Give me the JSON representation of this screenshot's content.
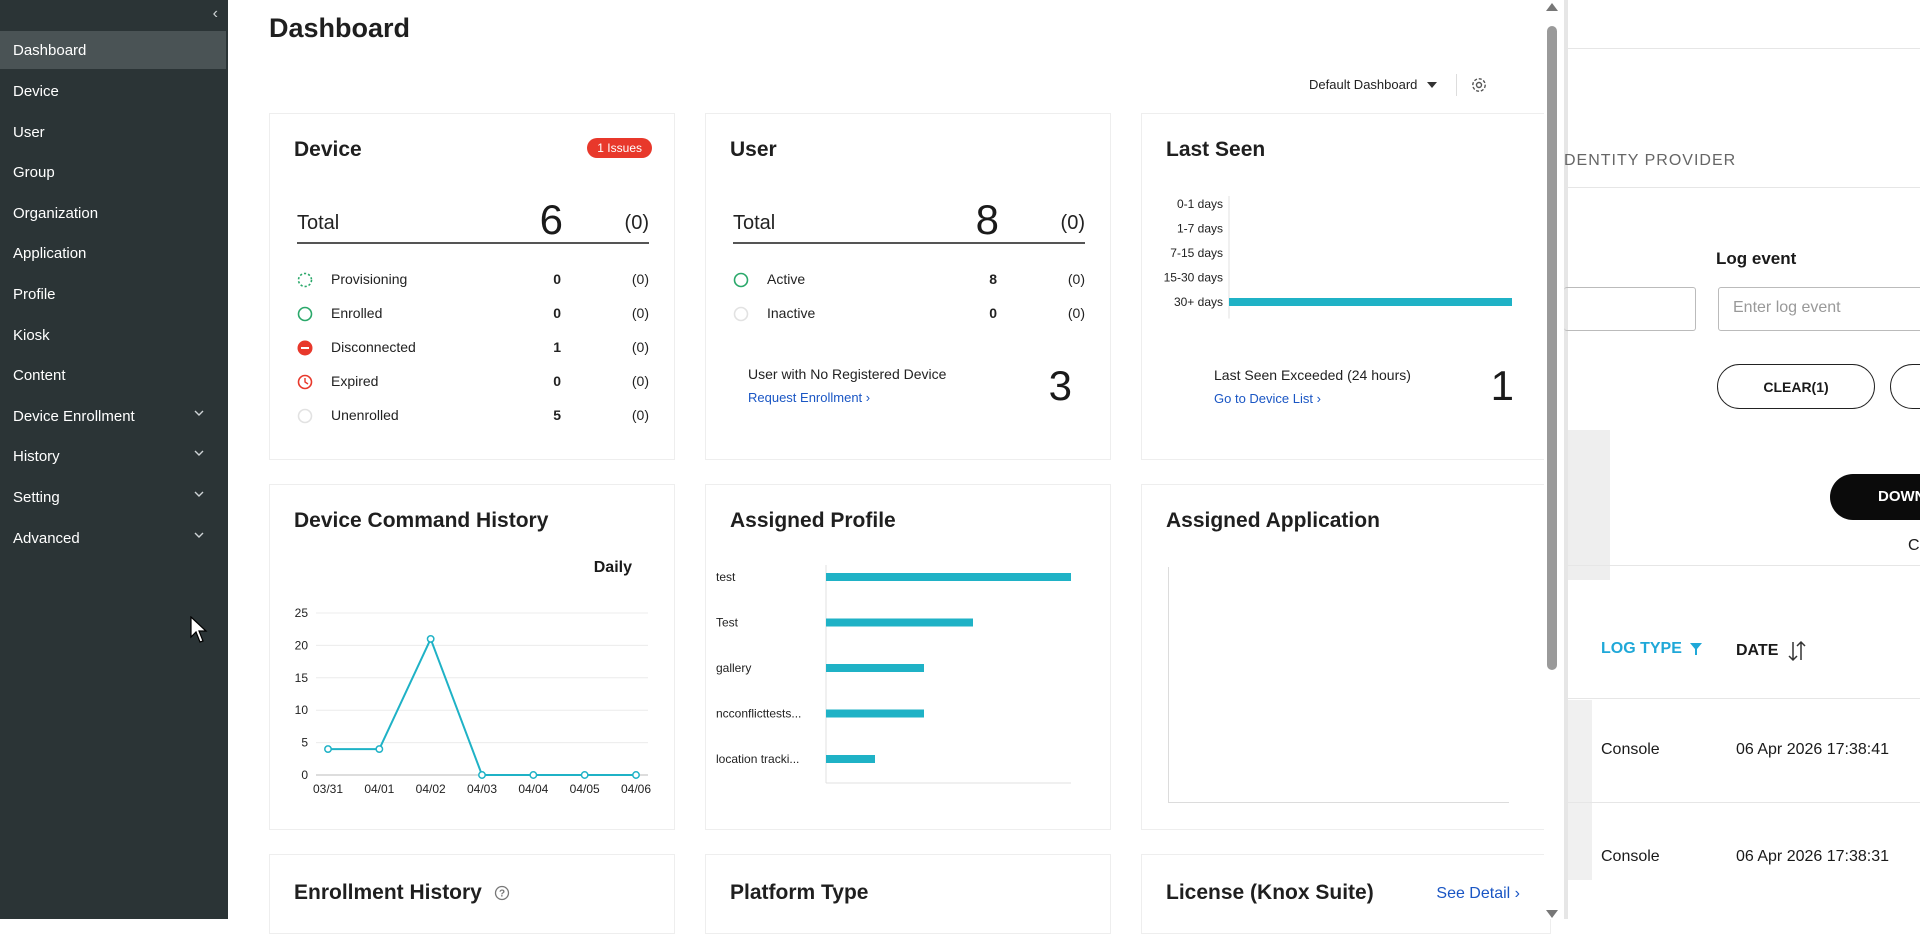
{
  "sidebar": {
    "items": [
      {
        "label": "Dashboard",
        "active": true
      },
      {
        "label": "Device"
      },
      {
        "label": "User"
      },
      {
        "label": "Group"
      },
      {
        "label": "Organization"
      },
      {
        "label": "Application"
      },
      {
        "label": "Profile"
      },
      {
        "label": "Kiosk"
      },
      {
        "label": "Content"
      },
      {
        "label": "Device Enrollment",
        "expandable": true
      },
      {
        "label": "History",
        "expandable": true
      },
      {
        "label": "Setting",
        "expandable": true
      },
      {
        "label": "Advanced",
        "expandable": true
      }
    ]
  },
  "dashboard": {
    "title": "Dashboard",
    "selector_label": "Default Dashboard",
    "device_card": {
      "title": "Device",
      "issues_badge": "1 Issues",
      "total_label": "Total",
      "total": "6",
      "total_paren": "(0)",
      "rows": [
        {
          "label": "Provisioning",
          "value": "0",
          "paren": "(0)",
          "icon": "provisioning-icon"
        },
        {
          "label": "Enrolled",
          "value": "0",
          "paren": "(0)",
          "icon": "enrolled-icon"
        },
        {
          "label": "Disconnected",
          "value": "1",
          "paren": "(0)",
          "icon": "disconnected-icon"
        },
        {
          "label": "Expired",
          "value": "0",
          "paren": "(0)",
          "icon": "expired-icon"
        },
        {
          "label": "Unenrolled",
          "value": "5",
          "paren": "(0)",
          "icon": "unenrolled-icon"
        }
      ]
    },
    "user_card": {
      "title": "User",
      "total_label": "Total",
      "total": "8",
      "total_paren": "(0)",
      "rows": [
        {
          "label": "Active",
          "value": "8",
          "paren": "(0)"
        },
        {
          "label": "Inactive",
          "value": "0",
          "paren": "(0)"
        }
      ],
      "no_device_label": "User with No Registered Device",
      "no_device_link": "Request Enrollment",
      "no_device_count": "3"
    },
    "last_seen_card": {
      "title": "Last Seen",
      "exceeded_label": "Last Seen Exceeded (24 hours)",
      "exceeded_link": "Go to Device List",
      "exceeded_count": "1"
    },
    "command_history_card": {
      "title": "Device Command History",
      "period": "Daily"
    },
    "assigned_profile_card": {
      "title": "Assigned Profile"
    },
    "assigned_application_card": {
      "title": "Assigned Application"
    },
    "enrollment_history_card": {
      "title": "Enrollment History"
    },
    "platform_type_card": {
      "title": "Platform Type"
    },
    "license_card": {
      "title": "License (Knox Suite)",
      "link": "See Detail"
    }
  },
  "chart_data": [
    {
      "type": "bar",
      "orientation": "horizontal",
      "categories": [
        "0-1 days",
        "1-7 days",
        "7-15 days",
        "15-30 days",
        "30+ days"
      ],
      "values": [
        0,
        0,
        0,
        0,
        6
      ],
      "color": "#1fb2c6"
    },
    {
      "type": "line",
      "x": [
        "03/31",
        "04/01",
        "04/02",
        "04/03",
        "04/04",
        "04/05",
        "04/06"
      ],
      "values": [
        4,
        4,
        21,
        0,
        0,
        0,
        0
      ],
      "ylim": [
        0,
        25
      ],
      "yticks": [
        0,
        5,
        10,
        15,
        20,
        25
      ],
      "grid": true,
      "color": "#1fb2c6"
    },
    {
      "type": "bar",
      "orientation": "horizontal",
      "categories": [
        "test",
        "Test",
        "gallery",
        "ncconflicttests...",
        "location tracki..."
      ],
      "values": [
        5,
        3,
        2,
        2,
        1
      ],
      "color": "#1fb2c6"
    }
  ],
  "background_panel": {
    "identity_provider_label": "DENTITY PROVIDER",
    "log_event_label": "Log event",
    "log_event_placeholder": "Enter log event",
    "clear_button": "CLEAR(1)",
    "download_button": "DOWN",
    "partial_char": "C",
    "log_type_header": "LOG TYPE",
    "date_header": "DATE",
    "rows": [
      {
        "log_type": "Console",
        "date": "06 Apr 2026 17:38:41"
      },
      {
        "log_type": "Console",
        "date": "06 Apr 2026 17:38:31"
      }
    ]
  },
  "colors": {
    "sidebar_bg": "#2b3436",
    "accent": "#1fb2c6",
    "issue": "#e8382b",
    "link": "#1a56c4"
  }
}
